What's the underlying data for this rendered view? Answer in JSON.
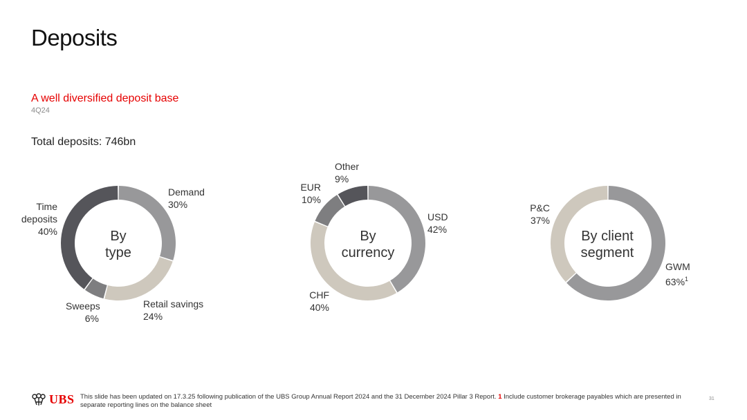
{
  "title": "Deposits",
  "subtitle": "A well diversified deposit base",
  "period": "4Q24",
  "total": "Total deposits: 746bn",
  "colors": {
    "dark": "#55555a",
    "medium": "#8f8f92",
    "light": "#cdc6bb",
    "accent": "#e60000"
  },
  "chart_data": [
    {
      "type": "pie",
      "center_label": [
        "By",
        "type"
      ],
      "categories": [
        "Demand",
        "Retail savings",
        "Sweeps",
        "Time deposits"
      ],
      "values": [
        30,
        24,
        6,
        40
      ],
      "colors": [
        "#98989a",
        "#cec8bd",
        "#7e7e80",
        "#55555a"
      ],
      "labels": [
        {
          "name": "Demand",
          "pct": "30%"
        },
        {
          "name": "Retail savings",
          "pct": "24%"
        },
        {
          "name": "Sweeps",
          "pct": "6%"
        },
        {
          "name": "Time deposits",
          "name_lines": [
            "Time",
            "deposits"
          ],
          "pct": "40%"
        }
      ]
    },
    {
      "type": "pie",
      "center_label": [
        "By",
        "currency"
      ],
      "categories": [
        "USD",
        "CHF",
        "EUR",
        "Other"
      ],
      "values": [
        42,
        40,
        10,
        9
      ],
      "colors": [
        "#98989a",
        "#cec8bd",
        "#7e7e80",
        "#55555a"
      ],
      "labels": [
        {
          "name": "USD",
          "pct": "42%"
        },
        {
          "name": "CHF",
          "pct": "40%"
        },
        {
          "name": "EUR",
          "pct": "10%"
        },
        {
          "name": "Other",
          "pct": "9%"
        }
      ]
    },
    {
      "type": "pie",
      "center_label": [
        "By client",
        "segment"
      ],
      "categories": [
        "GWM",
        "P&C"
      ],
      "values": [
        63,
        37
      ],
      "colors": [
        "#98989a",
        "#cec8bd"
      ],
      "labels": [
        {
          "name": "GWM",
          "pct": "63%",
          "footnote": "1"
        },
        {
          "name": "P&C",
          "pct": "37%"
        }
      ]
    }
  ],
  "footer": {
    "logo_text": "UBS",
    "note_text": "This slide has been updated on 17.3.25 following publication of the UBS Group Annual Report 2024 and the  31 December 2024 Pillar 3 Report.",
    "note_ref": "1",
    "note_ref_text": "Include customer brokerage payables which are presented in separate reporting lines on the balance sheet",
    "page_number": "31"
  }
}
